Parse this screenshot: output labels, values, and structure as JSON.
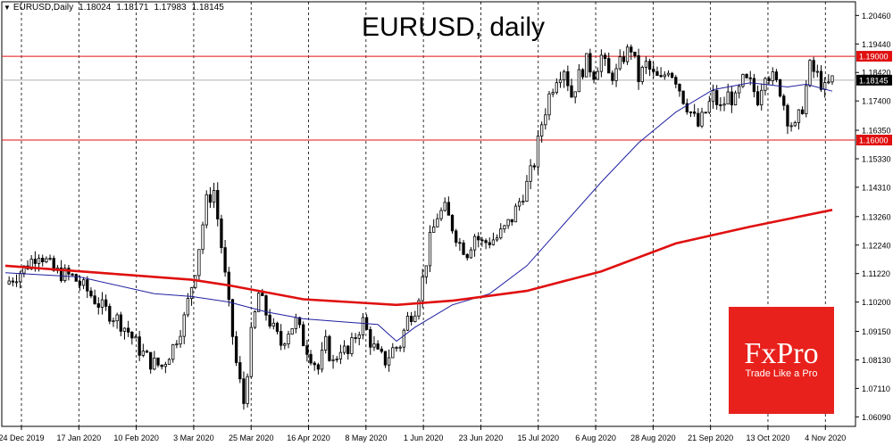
{
  "header": {
    "symbol": "EURUSD,Daily",
    "open": "1.18024",
    "high": "1.18171",
    "low": "1.17983",
    "close": "1.18145"
  },
  "title": "EURUSD, daily",
  "logo": {
    "brand": "FxPro",
    "tagline": "Trade Like a Pro"
  },
  "colors": {
    "candle": "#000000",
    "ma_short": "#1f1fa0",
    "ma_long": "#e01010",
    "level_line": "#e01010",
    "price_line": "#b0b0b0",
    "logo_bg": "#e8211c"
  },
  "chart_data": {
    "type": "line",
    "title": "EURUSD, daily",
    "xlabel": "",
    "ylabel": "",
    "ylim": [
      1.0575,
      1.2095
    ],
    "y_ticks": [
      "1.20460",
      "1.19440",
      "1.18420",
      "1.17400",
      "1.16350",
      "1.15330",
      "1.14310",
      "1.13260",
      "1.12240",
      "1.11220",
      "1.10200",
      "1.09150",
      "1.08130",
      "1.07110",
      "1.06090"
    ],
    "x_ticks": [
      "24 Dec 2019",
      "17 Jan 2020",
      "10 Feb 2020",
      "3 Mar 2020",
      "25 Mar 2020",
      "16 Apr 2020",
      "8 May 2020",
      "1 Jun 2020",
      "23 Jun 2020",
      "15 Jul 2020",
      "6 Aug 2020",
      "28 Aug 2020",
      "21 Sep 2020",
      "13 Oct 2020",
      "4 Nov 2020"
    ],
    "levels": [
      {
        "value": 1.19,
        "label": "1.19000"
      },
      {
        "value": 1.16,
        "label": "1.16000"
      }
    ],
    "current_price": {
      "value": 1.18145,
      "label": "1.18145"
    },
    "closes": [
      [
        0,
        1.1085
      ],
      [
        5,
        1.114
      ],
      [
        9,
        1.12
      ],
      [
        13,
        1.113
      ],
      [
        18,
        1.111
      ],
      [
        22,
        1.106
      ],
      [
        26,
        1.1
      ],
      [
        30,
        1.096
      ],
      [
        33,
        1.0915
      ],
      [
        36,
        1.085
      ],
      [
        39,
        1.0805
      ],
      [
        42,
        1.079
      ],
      [
        45,
        1.086
      ],
      [
        48,
        1.096
      ],
      [
        51,
        1.114
      ],
      [
        54,
        1.138
      ],
      [
        56,
        1.142
      ],
      [
        58,
        1.122
      ],
      [
        60,
        1.1
      ],
      [
        62,
        1.08
      ],
      [
        64,
        1.066
      ],
      [
        66,
        1.09
      ],
      [
        68,
        1.105
      ],
      [
        70,
        1.098
      ],
      [
        72,
        1.092
      ],
      [
        74,
        1.087
      ],
      [
        76,
        1.092
      ],
      [
        78,
        1.095
      ],
      [
        80,
        1.088
      ],
      [
        82,
        1.083
      ],
      [
        84,
        1.078
      ],
      [
        86,
        1.087
      ],
      [
        88,
        1.08
      ],
      [
        90,
        1.086
      ],
      [
        92,
        1.083
      ],
      [
        94,
        1.09
      ],
      [
        96,
        1.095
      ],
      [
        98,
        1.088
      ],
      [
        100,
        1.083
      ],
      [
        102,
        1.081
      ],
      [
        104,
        1.085
      ],
      [
        106,
        1.087
      ],
      [
        108,
        1.096
      ],
      [
        110,
        1.1
      ],
      [
        112,
        1.11
      ],
      [
        114,
        1.124
      ],
      [
        116,
        1.133
      ],
      [
        118,
        1.135
      ],
      [
        120,
        1.129
      ],
      [
        122,
        1.123
      ],
      [
        124,
        1.12
      ],
      [
        126,
        1.126
      ],
      [
        128,
        1.123
      ],
      [
        130,
        1.124
      ],
      [
        132,
        1.125
      ],
      [
        134,
        1.128
      ],
      [
        136,
        1.132
      ],
      [
        138,
        1.138
      ],
      [
        140,
        1.144
      ],
      [
        142,
        1.152
      ],
      [
        144,
        1.166
      ],
      [
        146,
        1.176
      ],
      [
        148,
        1.183
      ],
      [
        150,
        1.186
      ],
      [
        152,
        1.176
      ],
      [
        154,
        1.183
      ],
      [
        156,
        1.188
      ],
      [
        158,
        1.184
      ],
      [
        160,
        1.19
      ],
      [
        162,
        1.183
      ],
      [
        164,
        1.184
      ],
      [
        166,
        1.19
      ],
      [
        168,
        1.193
      ],
      [
        170,
        1.182
      ],
      [
        172,
        1.187
      ],
      [
        174,
        1.183
      ],
      [
        176,
        1.181
      ],
      [
        178,
        1.186
      ],
      [
        180,
        1.182
      ],
      [
        182,
        1.175
      ],
      [
        184,
        1.17
      ],
      [
        186,
        1.165
      ],
      [
        188,
        1.17
      ],
      [
        190,
        1.176
      ],
      [
        192,
        1.171
      ],
      [
        194,
        1.176
      ],
      [
        196,
        1.174
      ],
      [
        198,
        1.181
      ],
      [
        200,
        1.18
      ],
      [
        202,
        1.175
      ],
      [
        204,
        1.185
      ],
      [
        206,
        1.182
      ],
      [
        208,
        1.178
      ],
      [
        210,
        1.168
      ],
      [
        212,
        1.164
      ],
      [
        214,
        1.172
      ],
      [
        216,
        1.186
      ],
      [
        218,
        1.183
      ],
      [
        220,
        1.178
      ],
      [
        222,
        1.1815
      ]
    ],
    "series": [
      {
        "points": [
          [
            0,
            1.1125
          ],
          [
            20,
            1.111
          ],
          [
            40,
            1.105
          ],
          [
            50,
            1.104
          ],
          [
            60,
            1.102
          ],
          [
            70,
            1.0985
          ],
          [
            80,
            1.096
          ],
          [
            90,
            1.095
          ],
          [
            100,
            1.094
          ],
          [
            105,
            1.088
          ],
          [
            110,
            1.093
          ],
          [
            120,
            1.101
          ],
          [
            130,
            1.105
          ],
          [
            140,
            1.115
          ],
          [
            150,
            1.13
          ],
          [
            160,
            1.145
          ],
          [
            170,
            1.159
          ],
          [
            180,
            1.17
          ],
          [
            190,
            1.178
          ],
          [
            200,
            1.1805
          ],
          [
            210,
            1.179
          ],
          [
            215,
            1.18
          ],
          [
            222,
            1.1775
          ]
        ]
      },
      {
        "points": [
          [
            0,
            1.115
          ],
          [
            30,
            1.112
          ],
          [
            50,
            1.11
          ],
          [
            60,
            1.108
          ],
          [
            80,
            1.103
          ],
          [
            105,
            1.101
          ],
          [
            120,
            1.1025
          ],
          [
            140,
            1.106
          ],
          [
            160,
            1.113
          ],
          [
            180,
            1.123
          ],
          [
            200,
            1.129
          ],
          [
            222,
            1.135
          ]
        ]
      }
    ]
  }
}
